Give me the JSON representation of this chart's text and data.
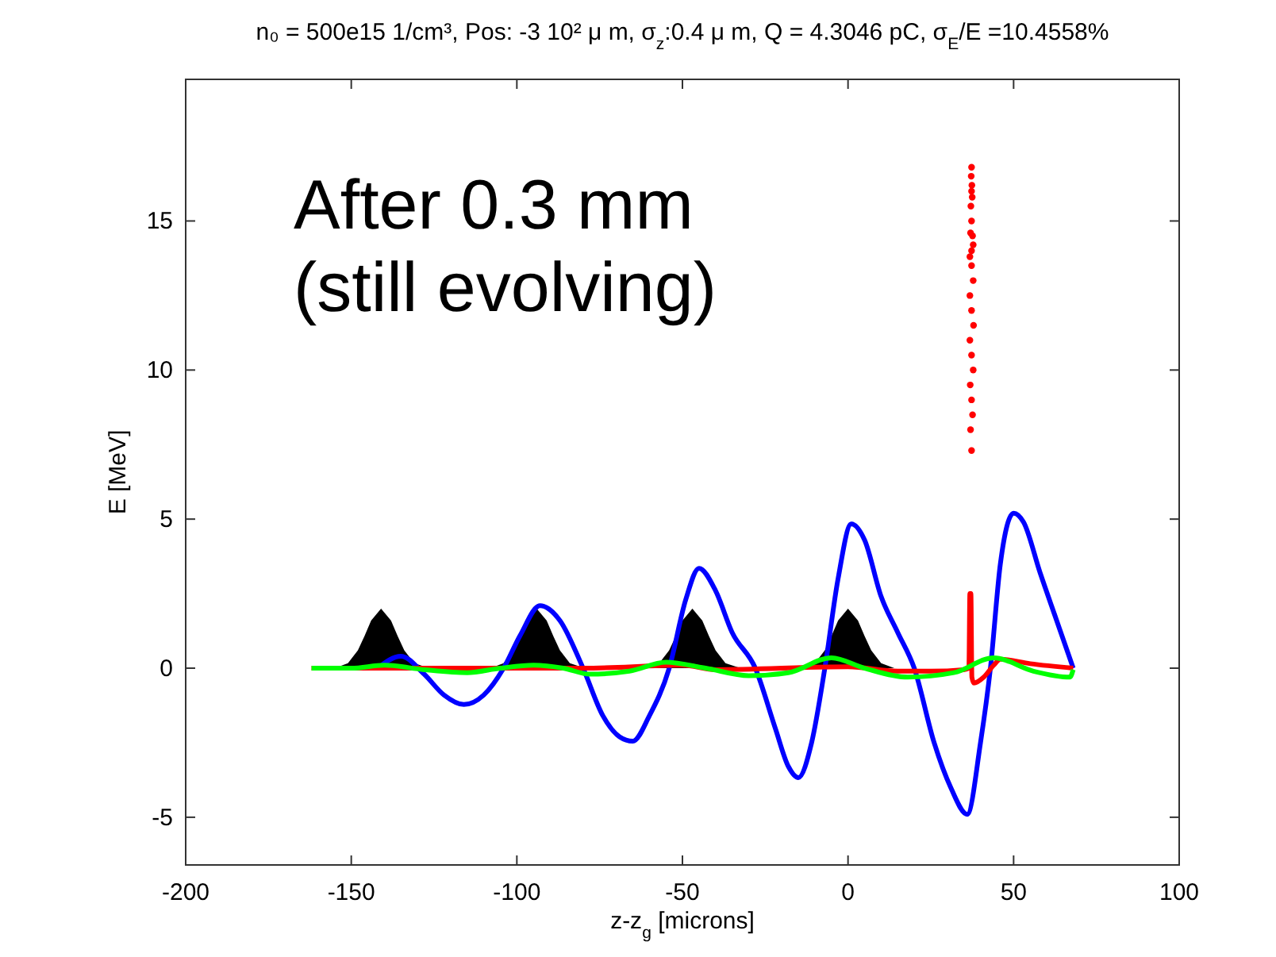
{
  "chart_data": {
    "type": "line",
    "title": "n₀ = 500e15 1/cm³, Pos: -3 10² μ m, σ$_{z}$:0.4 μ m, Q = 4.3046 pC, σ$_{E}$/E  =10.4558%",
    "xlabel": "z-z$_{g}$ [microns]",
    "ylabel": "E [MeV]",
    "annotations": [
      "After 0.3 mm\n(still evolving)"
    ],
    "xlim": [
      -200,
      100
    ],
    "xticks": [
      -200,
      -150,
      -100,
      -50,
      0,
      50,
      100
    ],
    "ylim": [
      -6.6,
      19.75
    ],
    "yticks": [
      -5,
      0,
      5,
      10,
      15
    ],
    "grid": false,
    "line_style": "solid",
    "series": [
      {
        "type": "area",
        "color": "#000000",
        "x": [
          -155,
          -151,
          -148,
          -146,
          -144,
          -141,
          -138,
          -136,
          -134,
          -131,
          -127,
          -120,
          -108,
          -104,
          -101,
          -99,
          -97,
          -94,
          -91,
          -89,
          -87,
          -84,
          -80,
          -73,
          -61,
          -57,
          -54,
          -52,
          -50,
          -47,
          -44,
          -42,
          -40,
          -37,
          -33,
          -26,
          -14,
          -10,
          -7,
          -5,
          -3,
          0,
          3,
          5,
          7,
          10,
          14
        ],
        "values": [
          0,
          0.17,
          0.6,
          1.08,
          1.6,
          2,
          1.6,
          1.08,
          0.6,
          0.17,
          0.02,
          0,
          0,
          0.17,
          0.6,
          1.08,
          1.6,
          2,
          1.6,
          1.08,
          0.6,
          0.17,
          0.02,
          0,
          0,
          0.17,
          0.6,
          1.08,
          1.6,
          2,
          1.6,
          1.08,
          0.6,
          0.17,
          0.02,
          0,
          0,
          0.17,
          0.6,
          1.08,
          1.6,
          2,
          1.6,
          1.08,
          0.6,
          0.17,
          0
        ]
      },
      {
        "color": "#0000ff",
        "x": [
          -142,
          -135,
          -128,
          -122,
          -116,
          -110,
          -104,
          -99,
          -93,
          -87,
          -80,
          -74,
          -69,
          -65,
          -60,
          -54,
          -49,
          -45,
          -40,
          -35,
          -28,
          -22,
          -18,
          -15,
          -11,
          -7,
          -3,
          1,
          5,
          10,
          15,
          20,
          26,
          31,
          36,
          40,
          43,
          46,
          50,
          53,
          58,
          63,
          68
        ],
        "values": [
          0,
          0.4,
          -0.2,
          -0.9,
          -1.22,
          -0.9,
          0,
          1.1,
          2.1,
          1.6,
          0,
          -1.6,
          -2.3,
          -2.45,
          -1.6,
          0,
          2.3,
          3.35,
          2.6,
          1.2,
          0,
          -2,
          -3.3,
          -3.67,
          -2.5,
          0,
          3,
          4.84,
          4.3,
          2.4,
          1.2,
          0,
          -2.5,
          -4,
          -4.9,
          -2.5,
          0,
          3.5,
          5.2,
          4.9,
          3.2,
          1.6,
          0
        ]
      },
      {
        "color": "#ff0000",
        "x": [
          -162,
          -120,
          -80,
          -50,
          -40,
          0,
          15,
          25,
          35,
          36.5,
          36.8,
          37.1,
          37.4,
          38,
          41,
          44,
          46,
          55,
          68
        ],
        "values": [
          0,
          0,
          0,
          0.1,
          -0.05,
          0.05,
          -0.1,
          -0.1,
          -0.05,
          0,
          2.5,
          2.5,
          -0.3,
          -0.5,
          -0.3,
          0.1,
          0.3,
          0.15,
          0
        ]
      },
      {
        "color": "#00ff00",
        "x": [
          -162,
          -150,
          -140,
          -128,
          -115,
          -105,
          -95,
          -86,
          -78,
          -66,
          -55,
          -43,
          -30,
          -18,
          -5,
          5,
          18,
          32,
          44,
          56,
          67,
          68
        ],
        "values": [
          0,
          0,
          0.1,
          -0.05,
          -0.15,
          0,
          0.1,
          0,
          -0.2,
          -0.1,
          0.2,
          0,
          -0.25,
          -0.15,
          0.35,
          0,
          -0.3,
          -0.15,
          0.35,
          -0.1,
          -0.3,
          -0.05
        ]
      },
      {
        "type": "scatter",
        "color": "#ff0000",
        "marker": "circle",
        "x": [
          37.3,
          37.0,
          37.6,
          37.3,
          36.9,
          37.8,
          37.3,
          36.8,
          37.9,
          37.3,
          36.8,
          37.8,
          37.3,
          36.8,
          37.8,
          37.3,
          37.0,
          37.6,
          37.3,
          37.1,
          37.5,
          37.3,
          37.4,
          37.2,
          37.3
        ],
        "values": [
          7.3,
          8,
          8.5,
          9,
          9.5,
          10,
          10.5,
          11,
          11.5,
          12,
          12.5,
          13,
          13.5,
          13.8,
          14.2,
          14,
          14.6,
          14.5,
          15,
          15.5,
          15.8,
          16,
          16.2,
          16.5,
          16.8
        ]
      }
    ]
  }
}
